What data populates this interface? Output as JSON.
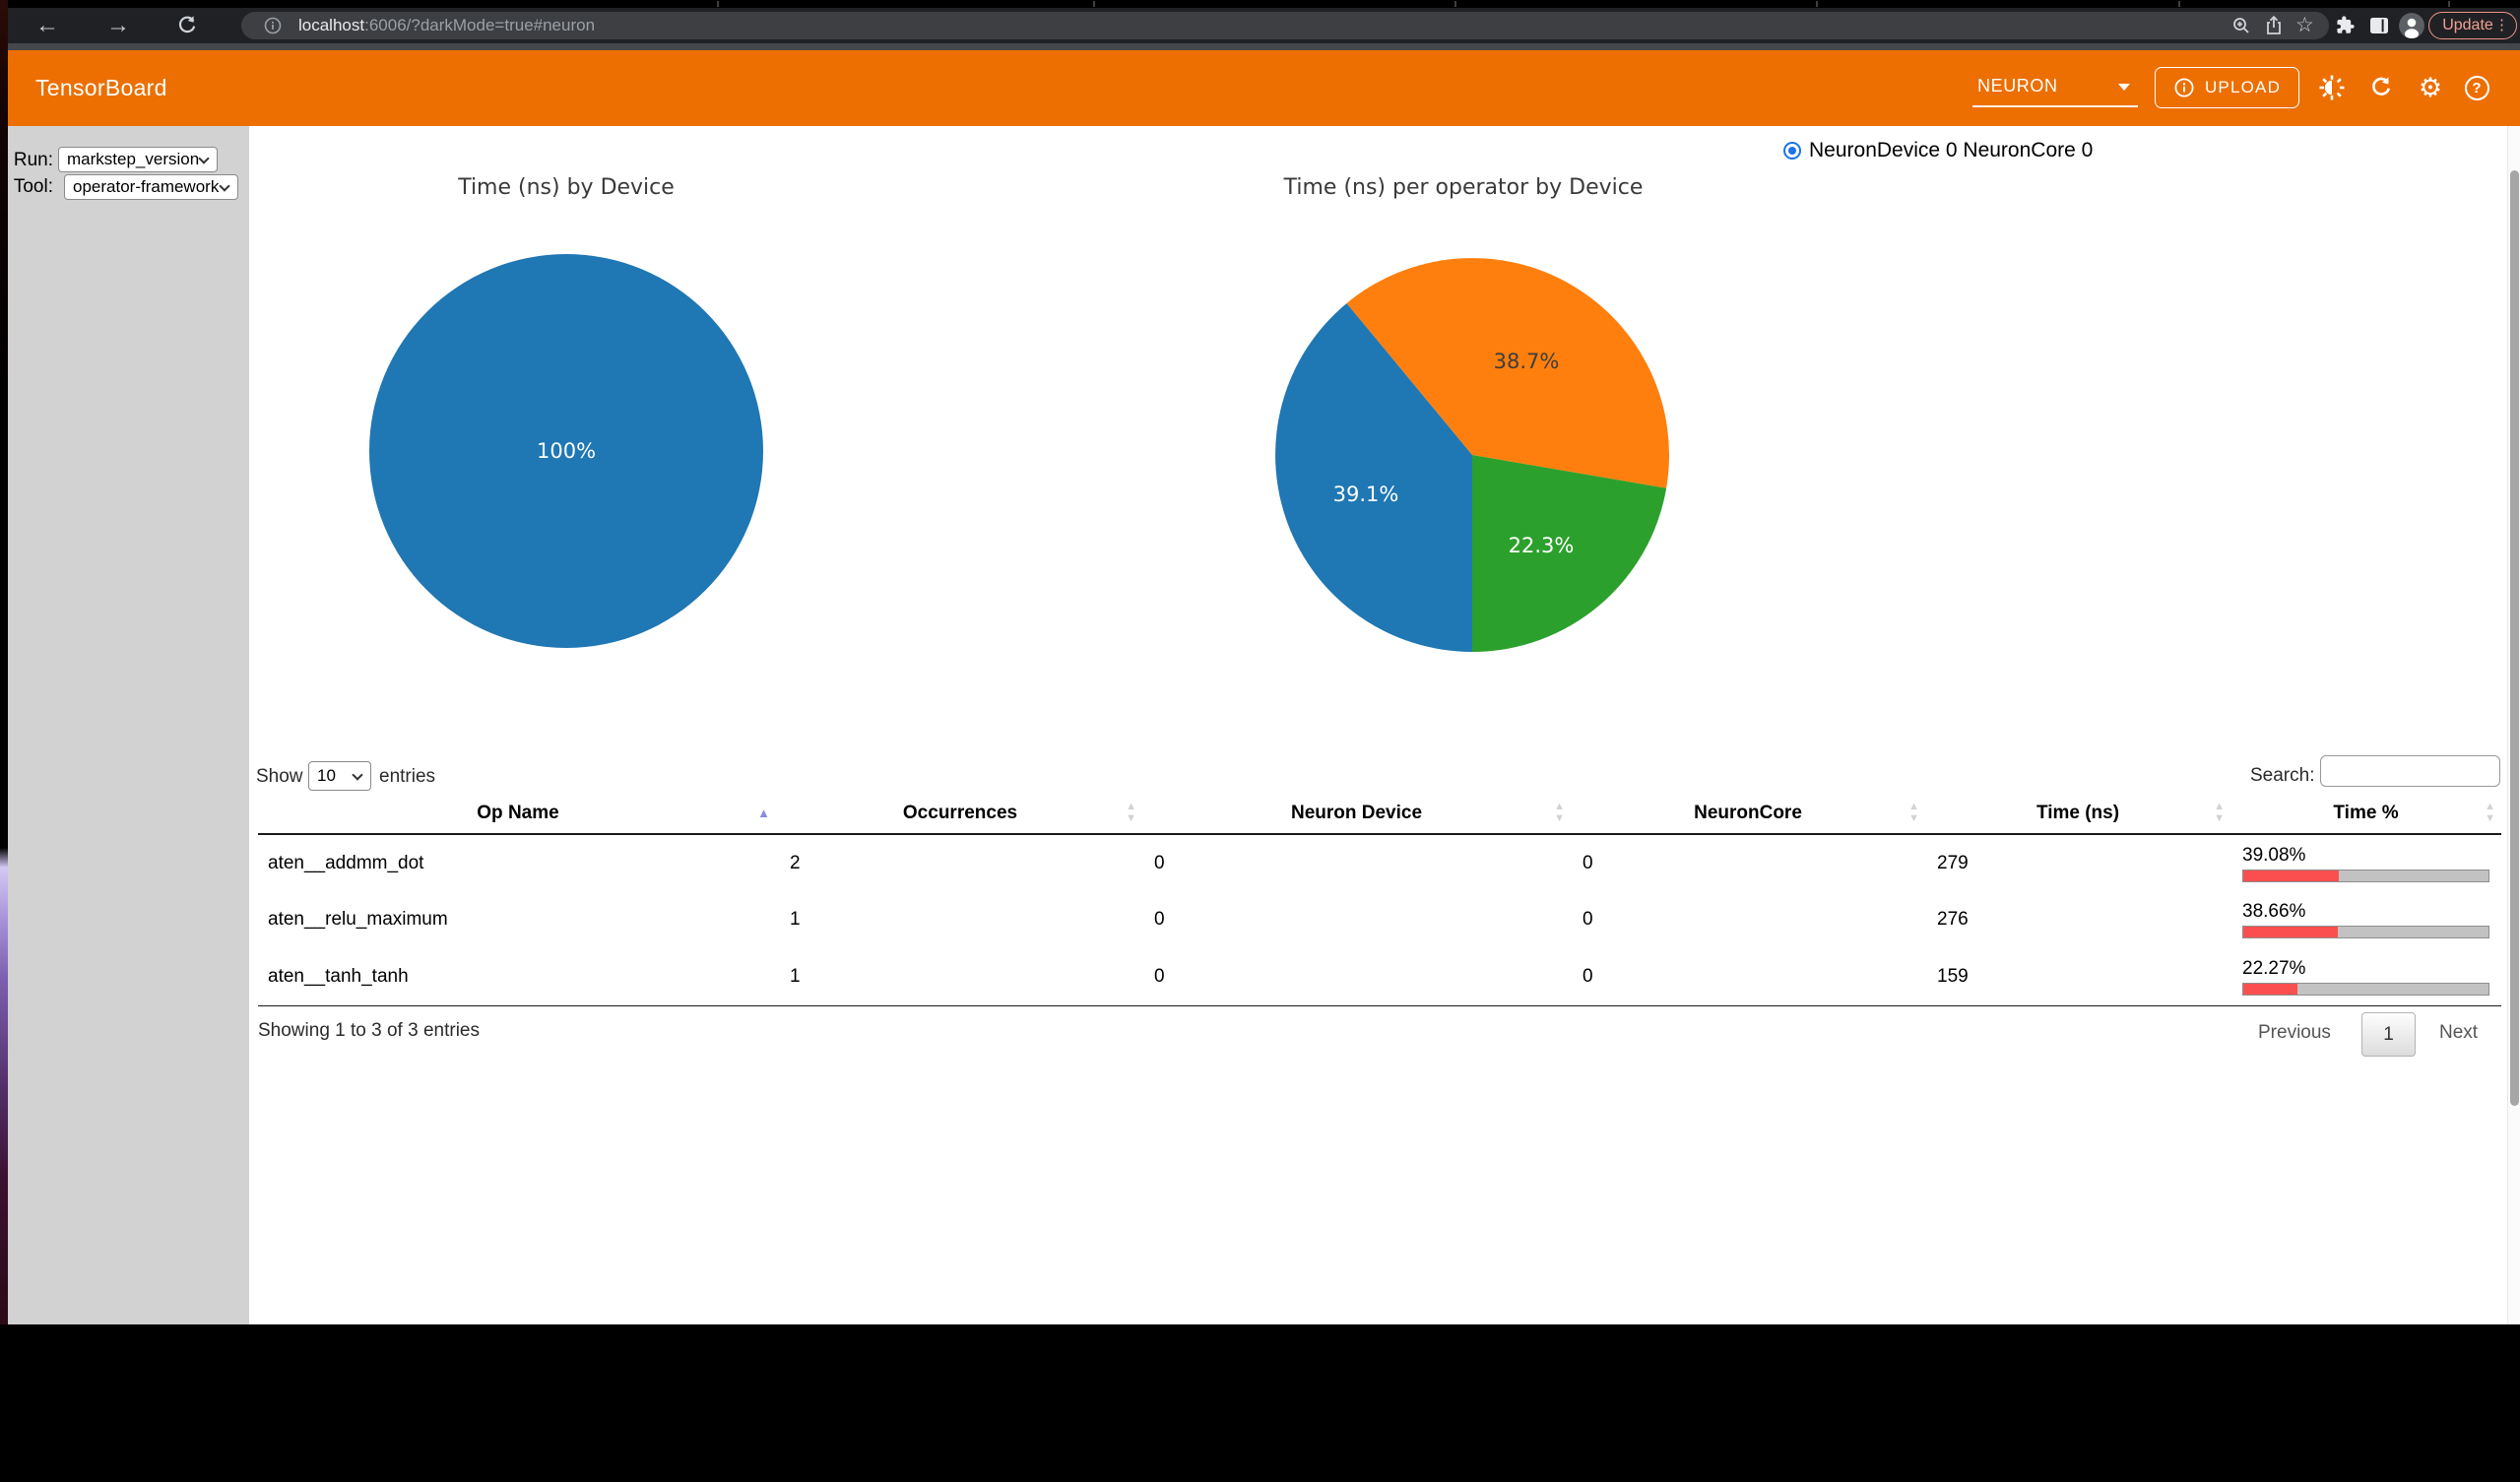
{
  "browser": {
    "url": {
      "host": "localhost",
      "rest": ":6006/?darkMode=true#neuron"
    },
    "update_button": "Update"
  },
  "icons": {
    "back": "←",
    "forward": "→",
    "star": "☆",
    "gear": "⚙",
    "menu_dots": "⋮",
    "help": "?"
  },
  "app_header": {
    "title": "TensorBoard",
    "plugin_selector": "NEURON",
    "upload": "UPLOAD",
    "accent_color": "#ED6F01"
  },
  "sidebar": {
    "run_label": "Run:",
    "run_value": "markstep_version",
    "tool_label": "Tool:",
    "tool_value": "operator-framework"
  },
  "device_selector": {
    "radio_label": "NeuronDevice 0 NeuronCore 0",
    "radio_color": "#1a73e8",
    "selected": true
  },
  "chart_data": [
    {
      "type": "pie",
      "title": "Time (ns) by Device",
      "slices": [
        {
          "label": "100%",
          "value": 100,
          "color": "#1f77b4",
          "label_color": "#ffffff"
        }
      ]
    },
    {
      "type": "pie",
      "title": "Time (ns) per operator by Device",
      "slices": [
        {
          "label": "39.1%",
          "value": 39.1,
          "color": "#1f77b4",
          "label_color": "#ffffff"
        },
        {
          "label": "38.7%",
          "value": 38.7,
          "color": "#ff7f0e",
          "label_color": "#3d3d3d"
        },
        {
          "label": "22.3%",
          "value": 22.3,
          "color": "#2ca02c",
          "label_color": "#ffffff"
        }
      ]
    }
  ],
  "table": {
    "show_label": "Show",
    "page_size": "10",
    "entries_label": "entries",
    "search_label": "Search:",
    "columns": [
      "Op Name",
      "Occurrences",
      "Neuron Device",
      "NeuronCore",
      "Time (ns)",
      "Time %"
    ],
    "sorted_column": "Op Name",
    "sort_direction": "ascending",
    "rows": [
      {
        "op_name": "aten__addmm_dot",
        "occurrences": "2",
        "neuron_device": "0",
        "neuron_core": "0",
        "time_ns": "279",
        "time_pct": "39.08%",
        "time_pct_value": 39.08
      },
      {
        "op_name": "aten__relu_maximum",
        "occurrences": "1",
        "neuron_device": "0",
        "neuron_core": "0",
        "time_ns": "276",
        "time_pct": "38.66%",
        "time_pct_value": 38.66
      },
      {
        "op_name": "aten__tanh_tanh",
        "occurrences": "1",
        "neuron_device": "0",
        "neuron_core": "0",
        "time_ns": "159",
        "time_pct": "22.27%",
        "time_pct_value": 22.27
      }
    ],
    "info": "Showing 1 to 3 of 3 entries",
    "pagination": {
      "previous": "Previous",
      "current": "1",
      "next": "Next"
    },
    "bar_fill_color": "#fb4f4f",
    "bar_track_color": "#c2c2c2"
  }
}
